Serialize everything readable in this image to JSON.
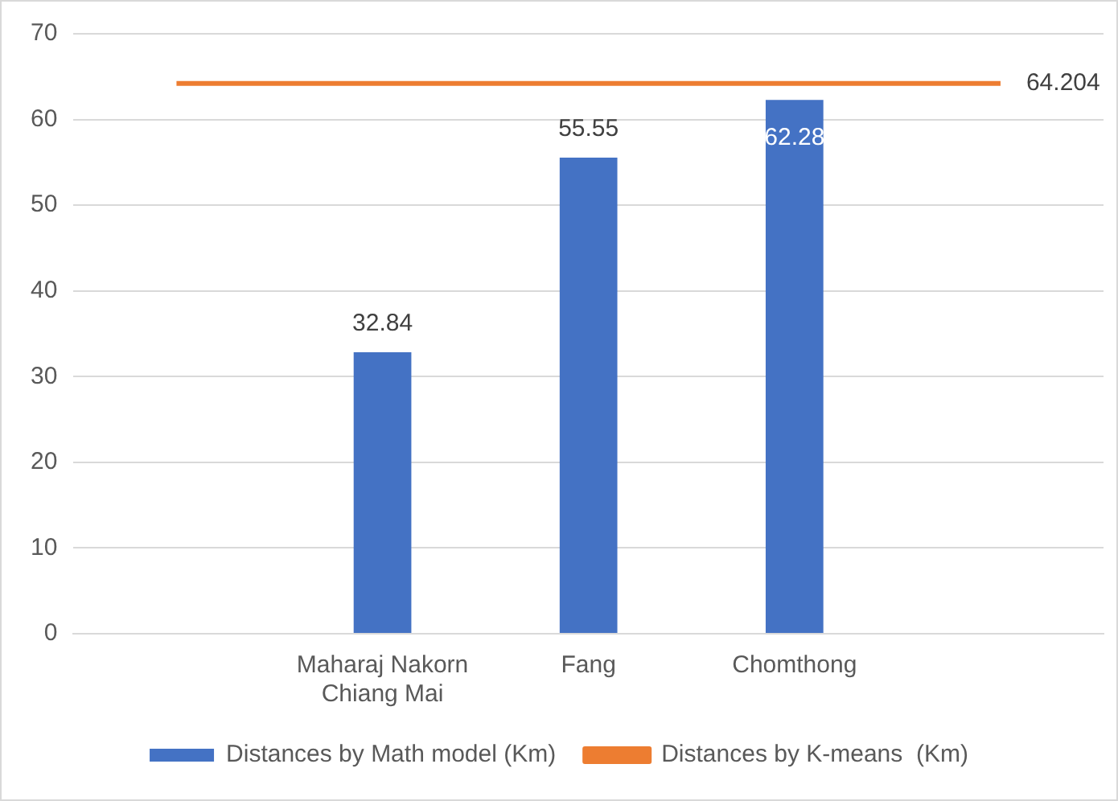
{
  "chart_data": {
    "type": "bar",
    "categories": [
      null,
      "Maharaj Nakorn\nChiang Mai",
      "Fang",
      "Chomthong",
      null
    ],
    "series": [
      {
        "name": "Distances by Math model (Km)",
        "color": "#4472c4",
        "values": [
          null,
          32.84,
          55.55,
          62.28,
          null
        ],
        "value_labels": [
          null,
          "32.84",
          "55.55",
          "62.28",
          null
        ]
      },
      {
        "name": "Distances by K-means  (Km)",
        "type": "line",
        "color": "#ed7d31",
        "values": [
          64.204,
          64.204,
          64.204,
          64.204,
          64.204
        ],
        "value_labels": [
          null,
          null,
          null,
          null,
          "64.204"
        ]
      }
    ],
    "ylim": [
      0,
      70
    ],
    "yticks": [
      0,
      10,
      20,
      30,
      40,
      50,
      60,
      70
    ],
    "grid": "y",
    "legend": "bottom",
    "marker": "none"
  }
}
